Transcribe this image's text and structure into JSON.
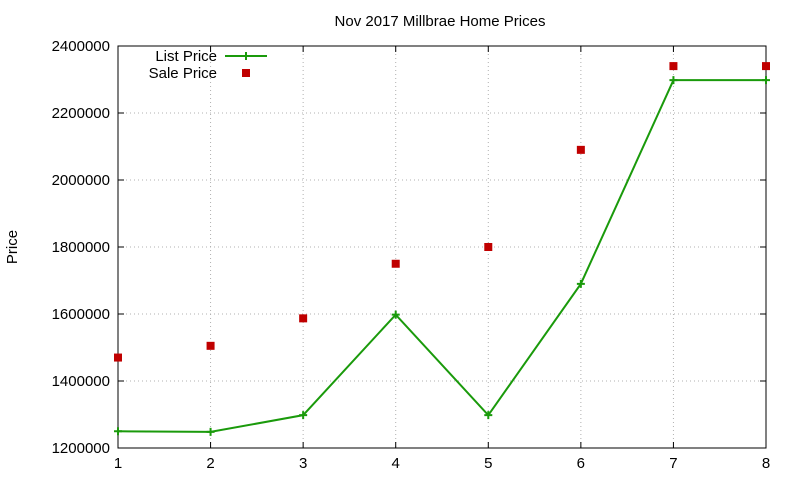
{
  "chart_data": {
    "type": "line",
    "title": "Nov 2017 Millbrae Home Prices",
    "xlabel": "",
    "ylabel": "Price",
    "x": [
      1,
      2,
      3,
      4,
      5,
      6,
      7,
      8
    ],
    "xlim": [
      1,
      8
    ],
    "ylim": [
      1200000,
      2400000
    ],
    "xticks": [
      "1",
      "2",
      "3",
      "4",
      "5",
      "6",
      "7",
      "8"
    ],
    "yticks": [
      "1200000",
      "1400000",
      "1600000",
      "1800000",
      "2000000",
      "2200000",
      "2400000"
    ],
    "grid": true,
    "legend_position": "top-left",
    "series": [
      {
        "name": "List Price",
        "style": "line-plus",
        "color": "#1a9a0b",
        "values": [
          1250000,
          1248000,
          1298000,
          1598000,
          1298000,
          1690000,
          2298000,
          2298000
        ]
      },
      {
        "name": "Sale Price",
        "style": "square-markers",
        "color": "#c00000",
        "values": [
          1470000,
          1505000,
          1587000,
          1750000,
          1800000,
          2090000,
          2340000,
          2340000
        ]
      }
    ]
  }
}
